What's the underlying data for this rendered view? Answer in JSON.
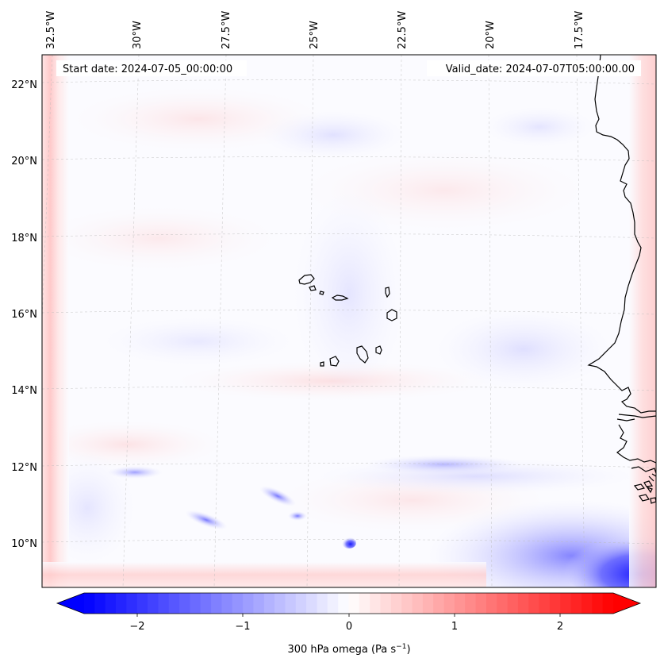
{
  "map": {
    "start_date_label": "Start date: 2024-07-05_00:00:00",
    "valid_date_label": "Valid_date: 2024-07-07T05:00:00.00",
    "longitude_labels": [
      "32.5°W",
      "30°W",
      "27.5°W",
      "25°W",
      "22.5°W",
      "20°W",
      "17.5°W"
    ],
    "latitude_labels": [
      "22°N",
      "20°N",
      "18°N",
      "16°N",
      "14°N",
      "12°N",
      "10°N"
    ],
    "gridlines": true,
    "projection": "lambert-conformal",
    "field": "300 hPa omega"
  },
  "colorbar": {
    "label_main": "300 hPa omega (Pa s",
    "label_exp": "−1",
    "label_close": ")",
    "tick_labels": [
      "−2",
      "−1",
      "0",
      "1",
      "2"
    ],
    "range": [
      -2.75,
      2.75
    ],
    "extend": "both",
    "colors": {
      "negative": "#0000ff",
      "zero": "#ffffff",
      "positive": "#ff0000"
    }
  }
}
